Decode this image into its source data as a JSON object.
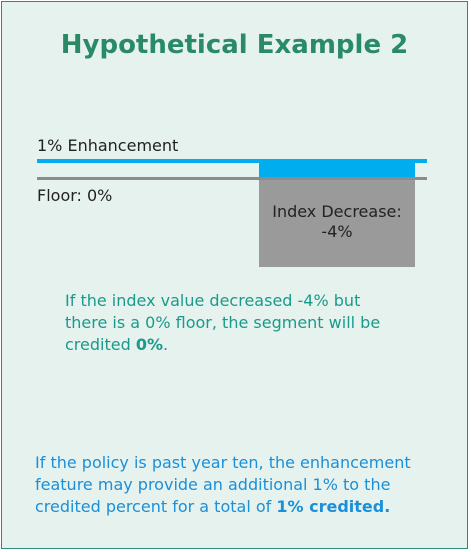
{
  "title": "Hypothetical Example 2",
  "diagram": {
    "enhancement_label": "1% Enhancement",
    "floor_label": "Floor: 0%",
    "decrease_label": "Index Decrease:",
    "decrease_value": "-4%"
  },
  "paragraphs": [
    {
      "text": "If the index value decreased -4% but there is a 0% floor, the segment will be credited ",
      "bold": "0%",
      "tail": "."
    },
    {
      "text": "If the policy is past year ten, the enhancement feature may provide an additional 1% to the credited percent for a total of ",
      "bold": "1% credited."
    }
  ]
}
